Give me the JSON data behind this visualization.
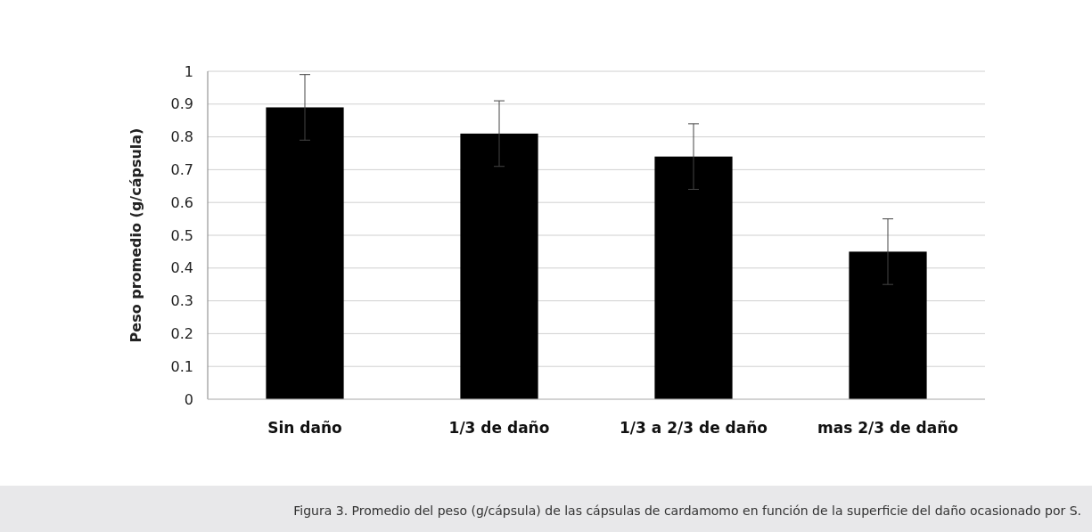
{
  "chart_data": {
    "type": "bar",
    "ylabel": "Peso promedio (g/cápsula)",
    "categories": [
      "Sin daño",
      "1/3 de daño",
      "1/3 a 2/3 de daño",
      "mas 2/3 de daño"
    ],
    "values": [
      0.89,
      0.81,
      0.74,
      0.45
    ],
    "errors": [
      0.1,
      0.1,
      0.1,
      0.1
    ],
    "color": "#000000",
    "ylim": [
      0,
      1
    ],
    "yticks": [
      0,
      0.1,
      0.2,
      0.3,
      0.4,
      0.5,
      0.6,
      0.7,
      0.8,
      0.9,
      1
    ],
    "grid": "y",
    "annotations": [
      "Figura 3. Promedio del peso (g/cápsula) de las cápsulas de cardamomo en función de la superficie del daño ocasionado por S."
    ]
  }
}
